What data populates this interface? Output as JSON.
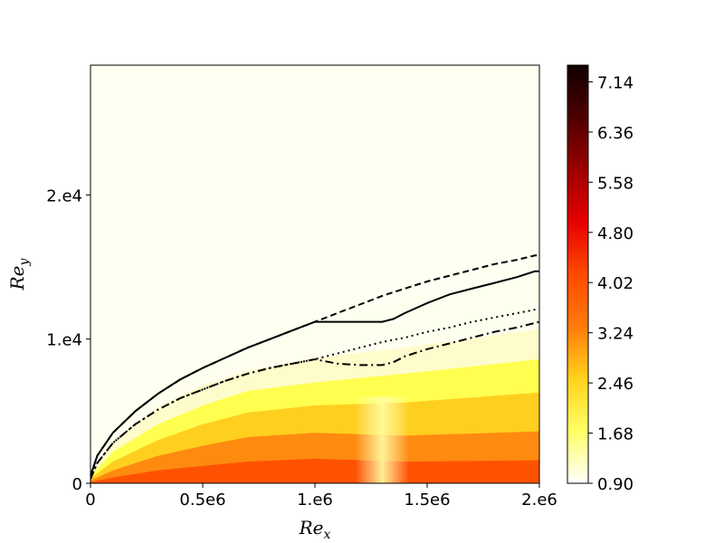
{
  "chart_data": {
    "type": "contour",
    "title": "",
    "xlabel": {
      "main": "Re",
      "sub": "x"
    },
    "ylabel": {
      "main": "Re",
      "sub": "y"
    },
    "xlim": [
      0,
      2000000
    ],
    "ylim": [
      0,
      29000
    ],
    "x_ticks": [
      {
        "value": 0,
        "label": "0"
      },
      {
        "value": 500000,
        "label": "0.5e6"
      },
      {
        "value": 1000000,
        "label": "1.e6"
      },
      {
        "value": 1500000,
        "label": "1.5e6"
      },
      {
        "value": 2000000,
        "label": "2.e6"
      }
    ],
    "y_ticks": [
      {
        "value": 0,
        "label": "0"
      },
      {
        "value": 10000,
        "label": "1.e4"
      },
      {
        "value": 20000,
        "label": "2.e4"
      }
    ],
    "colorbar": {
      "range": [
        0.9,
        7.4
      ],
      "ticks": [
        "0.90",
        "1.68",
        "2.46",
        "3.24",
        "4.02",
        "4.80",
        "5.58",
        "6.36",
        "7.14"
      ],
      "tick_values": [
        0.9,
        1.68,
        2.46,
        3.24,
        4.02,
        4.8,
        5.58,
        6.36,
        7.14
      ],
      "colormap": "hot_r",
      "colors": [
        "#fffffe",
        "#ffff66",
        "#ffd21a",
        "#ff7a0c",
        "#ff4a00",
        "#e60000",
        "#9c0000",
        "#4d0000",
        "#110000"
      ]
    },
    "field_levels": [
      {
        "name": "level-a",
        "color": "#fffff0",
        "points": [
          [
            0,
            1000
          ],
          [
            100000,
            4000
          ],
          [
            300000,
            6600
          ],
          [
            500000,
            8400
          ],
          [
            700000,
            9600
          ],
          [
            1000000,
            11000
          ],
          [
            1400000,
            12800
          ],
          [
            2000000,
            14600
          ]
        ]
      },
      {
        "name": "level-b",
        "color": "#fffccc",
        "points": [
          [
            0,
            700
          ],
          [
            100000,
            2900
          ],
          [
            300000,
            5300
          ],
          [
            500000,
            6800
          ],
          [
            700000,
            7800
          ],
          [
            1000000,
            8700
          ],
          [
            1400000,
            9400
          ],
          [
            2000000,
            10700
          ]
        ]
      },
      {
        "name": "level-c",
        "color": "#ffff50",
        "points": [
          [
            0,
            500
          ],
          [
            100000,
            2200
          ],
          [
            300000,
            4100
          ],
          [
            500000,
            5400
          ],
          [
            700000,
            6400
          ],
          [
            1000000,
            7000
          ],
          [
            1400000,
            7600
          ],
          [
            2000000,
            8600
          ]
        ]
      },
      {
        "name": "level-d",
        "color": "#ffcf20",
        "points": [
          [
            0,
            350
          ],
          [
            100000,
            1500
          ],
          [
            300000,
            3000
          ],
          [
            500000,
            4100
          ],
          [
            700000,
            4900
          ],
          [
            1000000,
            5400
          ],
          [
            1400000,
            5600
          ],
          [
            2000000,
            6300
          ]
        ]
      },
      {
        "name": "level-e",
        "color": "#ff8a10",
        "points": [
          [
            0,
            200
          ],
          [
            100000,
            900
          ],
          [
            300000,
            1900
          ],
          [
            500000,
            2600
          ],
          [
            700000,
            3200
          ],
          [
            1000000,
            3500
          ],
          [
            1400000,
            3300
          ],
          [
            2000000,
            3600
          ]
        ]
      },
      {
        "name": "level-f",
        "color": "#ff5200",
        "points": [
          [
            0,
            80
          ],
          [
            100000,
            400
          ],
          [
            300000,
            900
          ],
          [
            500000,
            1200
          ],
          [
            700000,
            1500
          ],
          [
            1000000,
            1700
          ],
          [
            1400000,
            1500
          ],
          [
            2000000,
            1600
          ]
        ]
      }
    ],
    "series": [
      {
        "style": "dashed",
        "points": [
          [
            0,
            500
          ],
          [
            30000,
            1900
          ],
          [
            100000,
            3500
          ],
          [
            200000,
            5000
          ],
          [
            300000,
            6200
          ],
          [
            400000,
            7200
          ],
          [
            500000,
            8000
          ],
          [
            600000,
            8700
          ],
          [
            700000,
            9400
          ],
          [
            800000,
            10000
          ],
          [
            900000,
            10600
          ],
          [
            1000000,
            11200
          ],
          [
            1100000,
            11800
          ],
          [
            1200000,
            12400
          ],
          [
            1300000,
            13000
          ],
          [
            1400000,
            13500
          ],
          [
            1500000,
            14000
          ],
          [
            1600000,
            14400
          ],
          [
            1700000,
            14800
          ],
          [
            1800000,
            15200
          ],
          [
            1900000,
            15500
          ],
          [
            1980000,
            15800
          ],
          [
            2000000,
            15800
          ]
        ]
      },
      {
        "style": "solid",
        "points": [
          [
            0,
            500
          ],
          [
            30000,
            1900
          ],
          [
            100000,
            3500
          ],
          [
            200000,
            5000
          ],
          [
            300000,
            6200
          ],
          [
            400000,
            7200
          ],
          [
            500000,
            8000
          ],
          [
            600000,
            8700
          ],
          [
            700000,
            9400
          ],
          [
            800000,
            10000
          ],
          [
            900000,
            10600
          ],
          [
            1000000,
            11200
          ],
          [
            1100000,
            11200
          ],
          [
            1200000,
            11200
          ],
          [
            1300000,
            11200
          ],
          [
            1350000,
            11400
          ],
          [
            1400000,
            11800
          ],
          [
            1500000,
            12500
          ],
          [
            1600000,
            13100
          ],
          [
            1700000,
            13500
          ],
          [
            1800000,
            13900
          ],
          [
            1900000,
            14300
          ],
          [
            1980000,
            14700
          ],
          [
            2000000,
            14700
          ]
        ]
      },
      {
        "style": "dotted",
        "points": [
          [
            0,
            300
          ],
          [
            30000,
            1400
          ],
          [
            100000,
            2800
          ],
          [
            200000,
            4100
          ],
          [
            300000,
            5100
          ],
          [
            400000,
            5900
          ],
          [
            500000,
            6500
          ],
          [
            600000,
            7100
          ],
          [
            700000,
            7600
          ],
          [
            800000,
            8000
          ],
          [
            900000,
            8300
          ],
          [
            1000000,
            8600
          ],
          [
            1100000,
            9000
          ],
          [
            1200000,
            9400
          ],
          [
            1300000,
            9800
          ],
          [
            1400000,
            10100
          ],
          [
            1500000,
            10500
          ],
          [
            1600000,
            10800
          ],
          [
            1700000,
            11200
          ],
          [
            1800000,
            11500
          ],
          [
            1900000,
            11800
          ],
          [
            2000000,
            12100
          ]
        ]
      },
      {
        "style": "dashdot",
        "points": [
          [
            0,
            300
          ],
          [
            30000,
            1400
          ],
          [
            100000,
            2800
          ],
          [
            200000,
            4100
          ],
          [
            300000,
            5100
          ],
          [
            400000,
            5900
          ],
          [
            500000,
            6500
          ],
          [
            600000,
            7100
          ],
          [
            700000,
            7600
          ],
          [
            800000,
            8000
          ],
          [
            900000,
            8300
          ],
          [
            1000000,
            8600
          ],
          [
            1100000,
            8300
          ],
          [
            1200000,
            8200
          ],
          [
            1300000,
            8200
          ],
          [
            1350000,
            8400
          ],
          [
            1400000,
            8800
          ],
          [
            1500000,
            9300
          ],
          [
            1600000,
            9700
          ],
          [
            1700000,
            10100
          ],
          [
            1800000,
            10500
          ],
          [
            1900000,
            10800
          ],
          [
            2000000,
            11200
          ]
        ]
      }
    ]
  }
}
